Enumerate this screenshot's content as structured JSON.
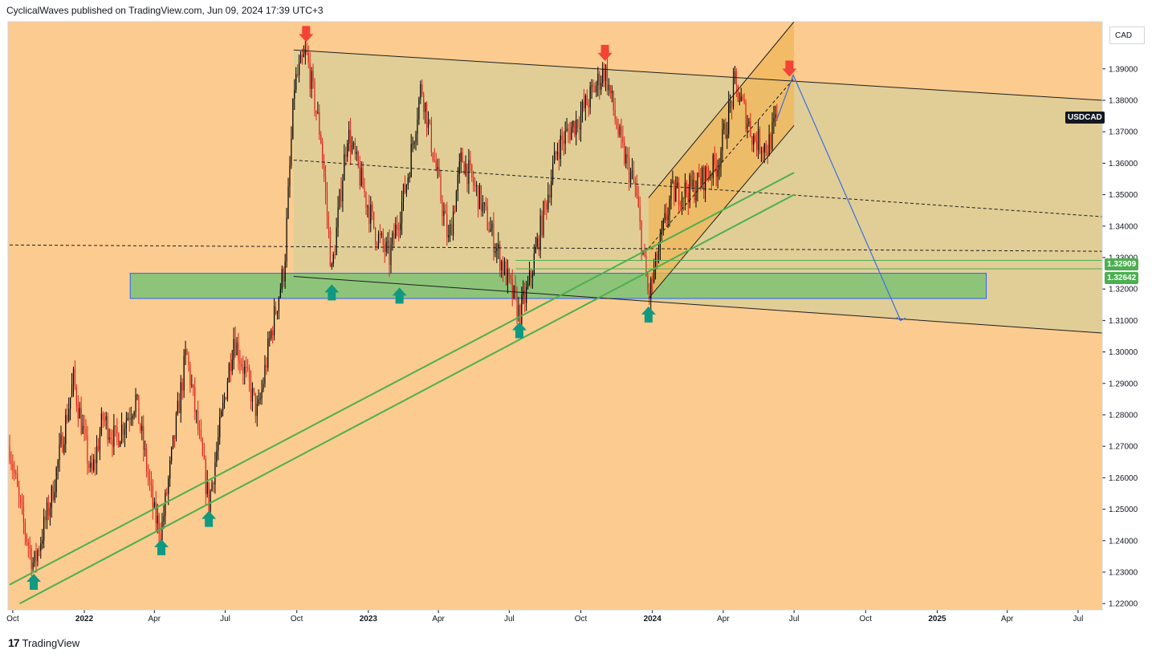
{
  "header": {
    "publisher_text": "CyclicalWaves published on TradingView.com, Jun 09, 2024 17:39 UTC+3"
  },
  "currency_button": "CAD",
  "symbol_tag": "USDCAD",
  "level_tags": [
    "1.32909",
    "1.32642"
  ],
  "footer": {
    "logo_mark": "17",
    "brand": "TradingView"
  },
  "colors": {
    "background": "#FCCB8F",
    "channel_fill": "#E0CE96",
    "support_zone": "#8DC47A",
    "rising_channel": "#F2B55A",
    "candle_up": "#000000",
    "candle_down": "#E0201B",
    "trendline_green": "#4CAF50",
    "projection_blue": "#3D6DE0",
    "arrow_top": "#F44336",
    "arrow_bottom": "#0F9980"
  },
  "chart_data": {
    "type": "candlestick",
    "symbol": "USDCAD",
    "y_axis": {
      "ylim": [
        1.218,
        1.405
      ],
      "ticks": [
        "1.39000",
        "1.38000",
        "1.37000",
        "1.36000",
        "1.35000",
        "1.34000",
        "1.33000",
        "1.32000",
        "1.31000",
        "1.30000",
        "1.29000",
        "1.28000",
        "1.27000",
        "1.26000",
        "1.25000",
        "1.24000",
        "1.23000",
        "1.22000"
      ]
    },
    "x_axis": {
      "range": [
        "2021-09-27",
        "2025-08-01"
      ],
      "ticks": [
        {
          "label": "Oct",
          "date": "2021-10-01",
          "bold": false
        },
        {
          "label": "2022",
          "date": "2022-01-01",
          "bold": true
        },
        {
          "label": "Apr",
          "date": "2022-04-01",
          "bold": false
        },
        {
          "label": "Jul",
          "date": "2022-07-01",
          "bold": false
        },
        {
          "label": "Oct",
          "date": "2022-10-01",
          "bold": false
        },
        {
          "label": "2023",
          "date": "2023-01-01",
          "bold": true
        },
        {
          "label": "Apr",
          "date": "2023-04-01",
          "bold": false
        },
        {
          "label": "Jul",
          "date": "2023-07-01",
          "bold": false
        },
        {
          "label": "Oct",
          "date": "2023-10-01",
          "bold": false
        },
        {
          "label": "2024",
          "date": "2024-01-01",
          "bold": true
        },
        {
          "label": "Apr",
          "date": "2024-04-01",
          "bold": false
        },
        {
          "label": "Jul",
          "date": "2024-07-01",
          "bold": false
        },
        {
          "label": "Oct",
          "date": "2024-10-01",
          "bold": false
        },
        {
          "label": "2025",
          "date": "2025-01-01",
          "bold": true
        },
        {
          "label": "Apr",
          "date": "2025-04-01",
          "bold": false
        },
        {
          "label": "Jul",
          "date": "2025-07-01",
          "bold": false
        }
      ]
    },
    "price_path": [
      [
        "2021-09-27",
        1.27
      ],
      [
        "2021-10-12",
        1.248
      ],
      [
        "2021-10-28",
        1.232
      ],
      [
        "2021-11-20",
        1.254
      ],
      [
        "2021-12-18",
        1.291
      ],
      [
        "2022-01-10",
        1.26
      ],
      [
        "2022-01-25",
        1.279
      ],
      [
        "2022-02-10",
        1.272
      ],
      [
        "2022-03-08",
        1.285
      ],
      [
        "2022-04-01",
        1.248
      ],
      [
        "2022-04-10",
        1.243
      ],
      [
        "2022-05-12",
        1.3
      ],
      [
        "2022-06-10",
        1.252
      ],
      [
        "2022-07-12",
        1.305
      ],
      [
        "2022-08-12",
        1.28
      ],
      [
        "2022-08-28",
        1.305
      ],
      [
        "2022-09-15",
        1.327
      ],
      [
        "2022-09-28",
        1.385
      ],
      [
        "2022-10-13",
        1.395
      ],
      [
        "2022-11-01",
        1.368
      ],
      [
        "2022-11-15",
        1.325
      ],
      [
        "2022-12-05",
        1.37
      ],
      [
        "2023-01-10",
        1.338
      ],
      [
        "2023-01-28",
        1.33
      ],
      [
        "2023-02-20",
        1.355
      ],
      [
        "2023-03-10",
        1.385
      ],
      [
        "2023-04-14",
        1.335
      ],
      [
        "2023-05-01",
        1.362
      ],
      [
        "2023-05-25",
        1.348
      ],
      [
        "2023-06-30",
        1.322
      ],
      [
        "2023-07-14",
        1.312
      ],
      [
        "2023-07-25",
        1.32
      ],
      [
        "2023-09-01",
        1.365
      ],
      [
        "2023-09-30",
        1.375
      ],
      [
        "2023-11-01",
        1.39
      ],
      [
        "2023-11-22",
        1.365
      ],
      [
        "2023-12-10",
        1.352
      ],
      [
        "2023-12-27",
        1.317
      ],
      [
        "2024-01-25",
        1.35
      ],
      [
        "2024-02-22",
        1.352
      ],
      [
        "2024-03-25",
        1.36
      ],
      [
        "2024-04-16",
        1.385
      ],
      [
        "2024-05-10",
        1.368
      ],
      [
        "2024-05-28",
        1.365
      ],
      [
        "2024-06-09",
        1.374
      ]
    ],
    "levels": [
      1.32909,
      1.32642
    ],
    "annotations": {
      "descending_channel": {
        "upper": [
          [
            "2022-09-27",
            1.396
          ],
          [
            "2025-08-01",
            1.38
          ]
        ],
        "lower": [
          [
            "2022-09-27",
            1.324
          ],
          [
            "2025-08-01",
            1.306
          ]
        ],
        "mid": [
          [
            "2022-09-27",
            1.361
          ],
          [
            "2025-08-01",
            1.343
          ]
        ]
      },
      "support_zone": {
        "from": "2022-03-01",
        "to": "2025-03-05",
        "top": 1.325,
        "bottom": 1.317
      },
      "rising_channel": {
        "lower": [
          [
            "2023-12-27",
            1.317
          ],
          [
            "2024-07-01",
            1.372
          ]
        ],
        "upper": [
          [
            "2023-12-27",
            1.349
          ],
          [
            "2024-07-01",
            1.405
          ]
        ],
        "mid": [
          [
            "2023-12-27",
            1.333
          ],
          [
            "2024-07-01",
            1.387
          ]
        ]
      },
      "green_trendlines": [
        [
          [
            "2021-09-27",
            1.226
          ],
          [
            "2024-07-01",
            1.357
          ]
        ],
        [
          [
            "2021-10-10",
            1.22
          ],
          [
            "2024-07-01",
            1.35
          ]
        ]
      ],
      "horizontal_dashed": [
        [
          "2021-09-27",
          1.334
        ],
        [
          "2025-08-01",
          1.332
        ]
      ],
      "projection": [
        [
          "2024-06-09",
          1.374
        ],
        [
          "2024-06-30",
          1.388
        ],
        [
          "2024-11-15",
          1.31
        ]
      ],
      "down_arrows": [
        [
          "2022-10-13",
          1.397
        ],
        [
          "2023-11-01",
          1.391
        ],
        [
          "2024-06-25",
          1.386
        ]
      ],
      "up_arrows": [
        [
          "2021-10-28",
          1.231
        ],
        [
          "2022-04-10",
          1.242
        ],
        [
          "2022-06-10",
          1.251
        ],
        [
          "2022-11-15",
          1.323
        ],
        [
          "2023-02-10",
          1.322
        ],
        [
          "2023-07-14",
          1.311
        ],
        [
          "2023-12-27",
          1.316
        ]
      ]
    }
  }
}
